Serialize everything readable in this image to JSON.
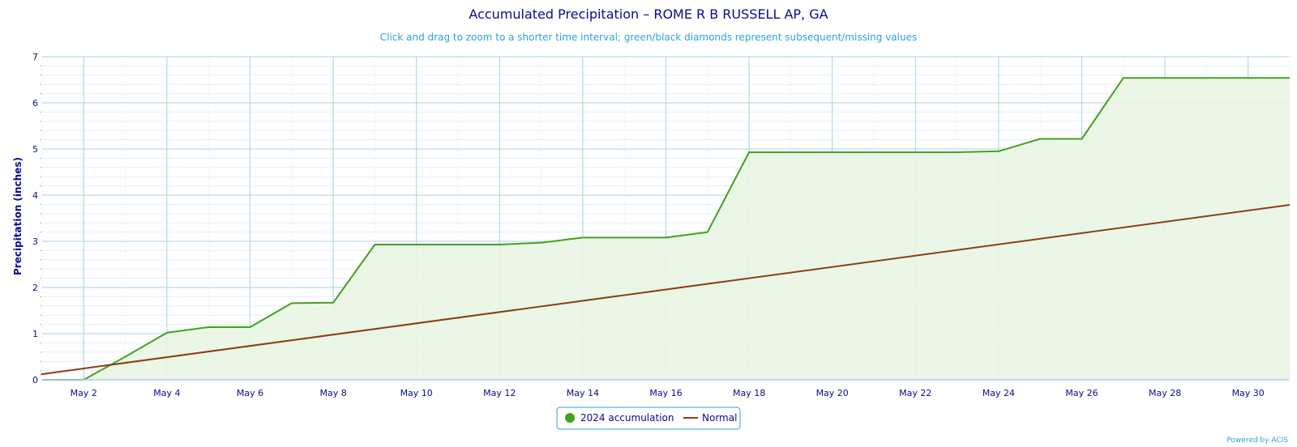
{
  "colors": {
    "accumulation": "#43a11e",
    "accumulation_fill": "#e9f5e3",
    "normal": "#8b3e12",
    "grid": "#a9d2e6",
    "minor_grid": "#e3f0f6",
    "text": "#0b0b8c",
    "subtitle": "#2aa4d8"
  },
  "chart_data": {
    "type": "line",
    "title": "Accumulated Precipitation – ROME R B RUSSELL AP, GA",
    "subtitle": "Click and drag to zoom to a shorter time interval; green/black diamonds represent subsequent/missing values",
    "ylabel": "Precipitation (inches)",
    "xlabel": "",
    "ylim": [
      0,
      7
    ],
    "xlim": [
      1,
      31
    ],
    "yticks": [
      "0",
      "1",
      "2",
      "3",
      "4",
      "5",
      "6",
      "7"
    ],
    "xticks": [
      {
        "day": 2,
        "label": "May 2"
      },
      {
        "day": 4,
        "label": "May 4"
      },
      {
        "day": 6,
        "label": "May 6"
      },
      {
        "day": 8,
        "label": "May 8"
      },
      {
        "day": 10,
        "label": "May 10"
      },
      {
        "day": 12,
        "label": "May 12"
      },
      {
        "day": 14,
        "label": "May 14"
      },
      {
        "day": 16,
        "label": "May 16"
      },
      {
        "day": 18,
        "label": "May 18"
      },
      {
        "day": 20,
        "label": "May 20"
      },
      {
        "day": 22,
        "label": "May 22"
      },
      {
        "day": 24,
        "label": "May 24"
      },
      {
        "day": 26,
        "label": "May 26"
      },
      {
        "day": 28,
        "label": "May 28"
      },
      {
        "day": 30,
        "label": "May 30"
      }
    ],
    "grid": true,
    "legend_position": "bottom-center",
    "series": [
      {
        "name": "2024 accumulation",
        "x": [
          1,
          2,
          3,
          4,
          5,
          6,
          7,
          8,
          9,
          10,
          11,
          12,
          13,
          14,
          15,
          16,
          17,
          18,
          19,
          20,
          21,
          22,
          23,
          24,
          25,
          26,
          27,
          28,
          29,
          30,
          31
        ],
        "values": [
          0,
          0,
          0.5,
          1.02,
          1.14,
          1.14,
          1.66,
          1.67,
          2.93,
          2.93,
          2.93,
          2.93,
          2.97,
          3.08,
          3.08,
          3.08,
          3.2,
          4.93,
          4.93,
          4.93,
          4.93,
          4.93,
          4.93,
          4.95,
          5.22,
          5.22,
          6.54,
          6.54,
          6.54,
          6.54,
          6.54
        ]
      },
      {
        "name": "Normal",
        "x": [
          0.97,
          31
        ],
        "values": [
          0.12,
          3.79
        ]
      }
    ]
  },
  "credit": "Powered by ACIS"
}
